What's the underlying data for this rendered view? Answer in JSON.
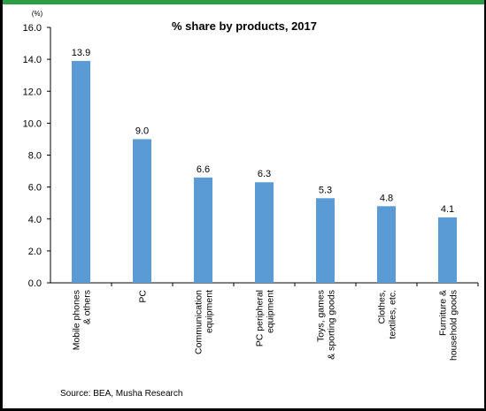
{
  "colors": {
    "bar": "#5B9BD5",
    "accent": "#2E9E44",
    "axis": "#000000"
  },
  "unit_label": "(%)",
  "source": "Source: BEA, Musha Research",
  "chart_data": {
    "type": "bar",
    "title": "% share by products, 2017",
    "categories": [
      [
        "Mobile phones",
        "& others"
      ],
      [
        "PC"
      ],
      [
        "Communication",
        "equipment"
      ],
      [
        "PC peripheral",
        "equipment"
      ],
      [
        "Toys, games",
        "& sporting goods"
      ],
      [
        "Clothes,",
        "textiles, etc."
      ],
      [
        "Furniture &",
        "household goods"
      ]
    ],
    "values": [
      13.9,
      9.0,
      6.6,
      6.3,
      5.3,
      4.8,
      4.1
    ],
    "value_labels": [
      "13.9",
      "9.0",
      "6.6",
      "6.3",
      "5.3",
      "4.8",
      "4.1"
    ],
    "yticks": [
      "0.0",
      "2.0",
      "4.0",
      "6.0",
      "8.0",
      "10.0",
      "12.0",
      "14.0",
      "16.0"
    ],
    "ylim": [
      0,
      16
    ],
    "grid": false,
    "legend": "none"
  }
}
